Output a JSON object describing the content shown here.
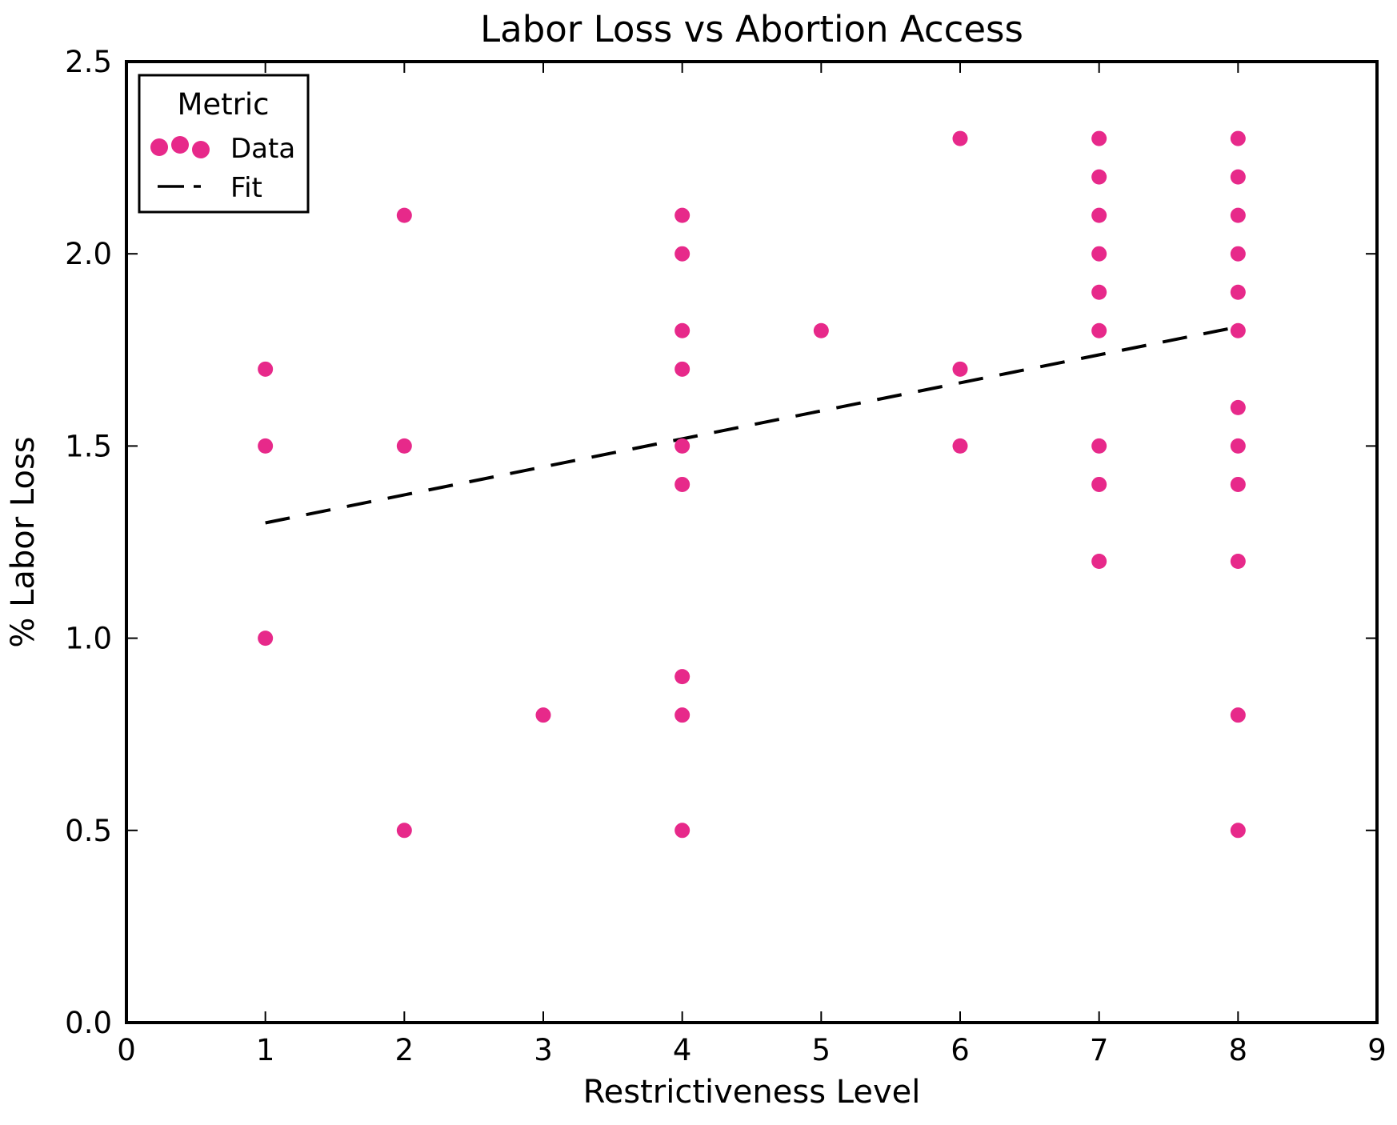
{
  "chart_data": {
    "type": "scatter",
    "title": "Labor Loss vs Abortion Access",
    "xlabel": "Restrictiveness Level",
    "ylabel": "% Labor Loss",
    "xlim": [
      0,
      9
    ],
    "ylim": [
      0,
      2.5
    ],
    "xticks": [
      "0",
      "1",
      "2",
      "3",
      "4",
      "5",
      "6",
      "7",
      "8",
      "9"
    ],
    "yticks": [
      "0.0",
      "0.5",
      "1.0",
      "1.5",
      "2.0",
      "2.5"
    ],
    "grid": false,
    "axis_color": "#000000",
    "text_color": "#000000",
    "background": "#ffffff",
    "legend": {
      "title": "Metric",
      "position": "upper-left",
      "entries": [
        {
          "label": "Data",
          "marker": "three-dots",
          "color": "#e7298a"
        },
        {
          "label": "Fit",
          "marker": "dashed-line",
          "color": "#000000"
        }
      ]
    },
    "series": [
      {
        "name": "Data",
        "kind": "scatter",
        "color": "#e7298a",
        "marker": "circle",
        "points": [
          [
            1,
            1.0
          ],
          [
            1,
            1.5
          ],
          [
            1,
            1.7
          ],
          [
            2,
            0.5
          ],
          [
            2,
            1.5
          ],
          [
            2,
            2.1
          ],
          [
            3,
            0.8
          ],
          [
            4,
            0.5
          ],
          [
            4,
            0.8
          ],
          [
            4,
            0.9
          ],
          [
            4,
            1.4
          ],
          [
            4,
            1.5
          ],
          [
            4,
            1.7
          ],
          [
            4,
            1.8
          ],
          [
            4,
            2.0
          ],
          [
            4,
            2.1
          ],
          [
            5,
            1.8
          ],
          [
            6,
            1.5
          ],
          [
            6,
            1.7
          ],
          [
            6,
            2.3
          ],
          [
            7,
            1.2
          ],
          [
            7,
            1.4
          ],
          [
            7,
            1.5
          ],
          [
            7,
            1.8
          ],
          [
            7,
            1.9
          ],
          [
            7,
            2.0
          ],
          [
            7,
            2.1
          ],
          [
            7,
            2.2
          ],
          [
            7,
            2.3
          ],
          [
            8,
            0.5
          ],
          [
            8,
            0.8
          ],
          [
            8,
            1.2
          ],
          [
            8,
            1.4
          ],
          [
            8,
            1.5
          ],
          [
            8,
            1.6
          ],
          [
            8,
            1.8
          ],
          [
            8,
            1.9
          ],
          [
            8,
            2.0
          ],
          [
            8,
            2.1
          ],
          [
            8,
            2.2
          ],
          [
            8,
            2.3
          ]
        ]
      },
      {
        "name": "Fit",
        "kind": "line",
        "style": "dashed",
        "color": "#000000",
        "x": [
          1,
          8
        ],
        "y": [
          1.3,
          1.81
        ]
      }
    ]
  }
}
